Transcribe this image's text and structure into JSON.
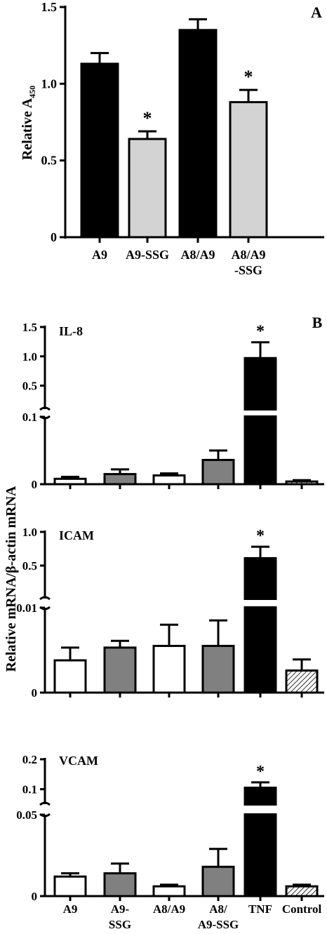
{
  "chart_data": [
    {
      "panel_letter": "A",
      "type": "bar",
      "ylabel": "Relative A",
      "ylabel_sub": "450",
      "ylim": [
        0,
        1.5
      ],
      "yticks": [
        "0",
        "0.5",
        "1.0",
        "1.5"
      ],
      "categories": [
        [
          "A9"
        ],
        [
          "A9-SSG"
        ],
        [
          "A8/A9"
        ],
        [
          "A8/A9",
          "-SSG"
        ]
      ],
      "values": [
        1.13,
        0.64,
        1.35,
        0.88
      ],
      "errors": [
        0.07,
        0.05,
        0.07,
        0.08
      ],
      "fill_colors": [
        "#000000",
        "#d3d3d3",
        "#000000",
        "#d3d3d3"
      ],
      "significance": [
        "",
        "*",
        "",
        "*"
      ]
    },
    {
      "panel_letter": "B",
      "shared_ylabel": "Relative mRNA/β-actin mRNA",
      "categories": [
        [
          "A9"
        ],
        [
          "A9-",
          "SSG"
        ],
        [
          "A8/A9"
        ],
        [
          "A8/",
          "A9-SSG"
        ],
        [
          "TNF"
        ],
        [
          "Control"
        ]
      ],
      "fill_colors": [
        "#ffffff",
        "#808080",
        "#ffffff",
        "#808080",
        "#000000",
        "hatched"
      ],
      "subpanels": [
        {
          "type": "bar",
          "label": "IL-8",
          "ylim_lower": [
            0,
            0.1
          ],
          "ylim_upper": [
            0.1,
            1.5
          ],
          "yticks_lower": [
            "0",
            "0.1"
          ],
          "yticks_upper": [
            "0.5",
            "1.0",
            "1.5"
          ],
          "values": [
            0.008,
            0.015,
            0.013,
            0.036,
            0.97,
            0.004
          ],
          "errors": [
            0.003,
            0.007,
            0.003,
            0.014,
            0.27,
            0.002
          ],
          "significance": [
            "",
            "",
            "",
            "",
            "*",
            ""
          ]
        },
        {
          "type": "bar",
          "label": "ICAM",
          "ylim_lower": [
            0,
            0.01
          ],
          "ylim_upper": [
            0.01,
            1.0
          ],
          "yticks_lower": [
            "0",
            "0.01"
          ],
          "yticks_upper": [
            "0.5",
            "1.0"
          ],
          "values": [
            0.0038,
            0.0053,
            0.0055,
            0.0055,
            0.61,
            0.0026
          ],
          "errors": [
            0.0015,
            0.0008,
            0.0025,
            0.003,
            0.17,
            0.0013
          ],
          "significance": [
            "",
            "",
            "",
            "",
            "*",
            ""
          ]
        },
        {
          "type": "bar",
          "label": "VCAM",
          "ylim_lower": [
            0,
            0.05
          ],
          "ylim_upper": [
            0.05,
            0.2
          ],
          "yticks_lower": [
            "0",
            "0.05"
          ],
          "yticks_upper": [
            "0.1",
            "0.2"
          ],
          "values": [
            0.012,
            0.014,
            0.006,
            0.018,
            0.105,
            0.006
          ],
          "errors": [
            0.002,
            0.006,
            0.001,
            0.011,
            0.018,
            0.001
          ],
          "significance": [
            "",
            "",
            "",
            "",
            "*",
            ""
          ]
        }
      ]
    }
  ]
}
